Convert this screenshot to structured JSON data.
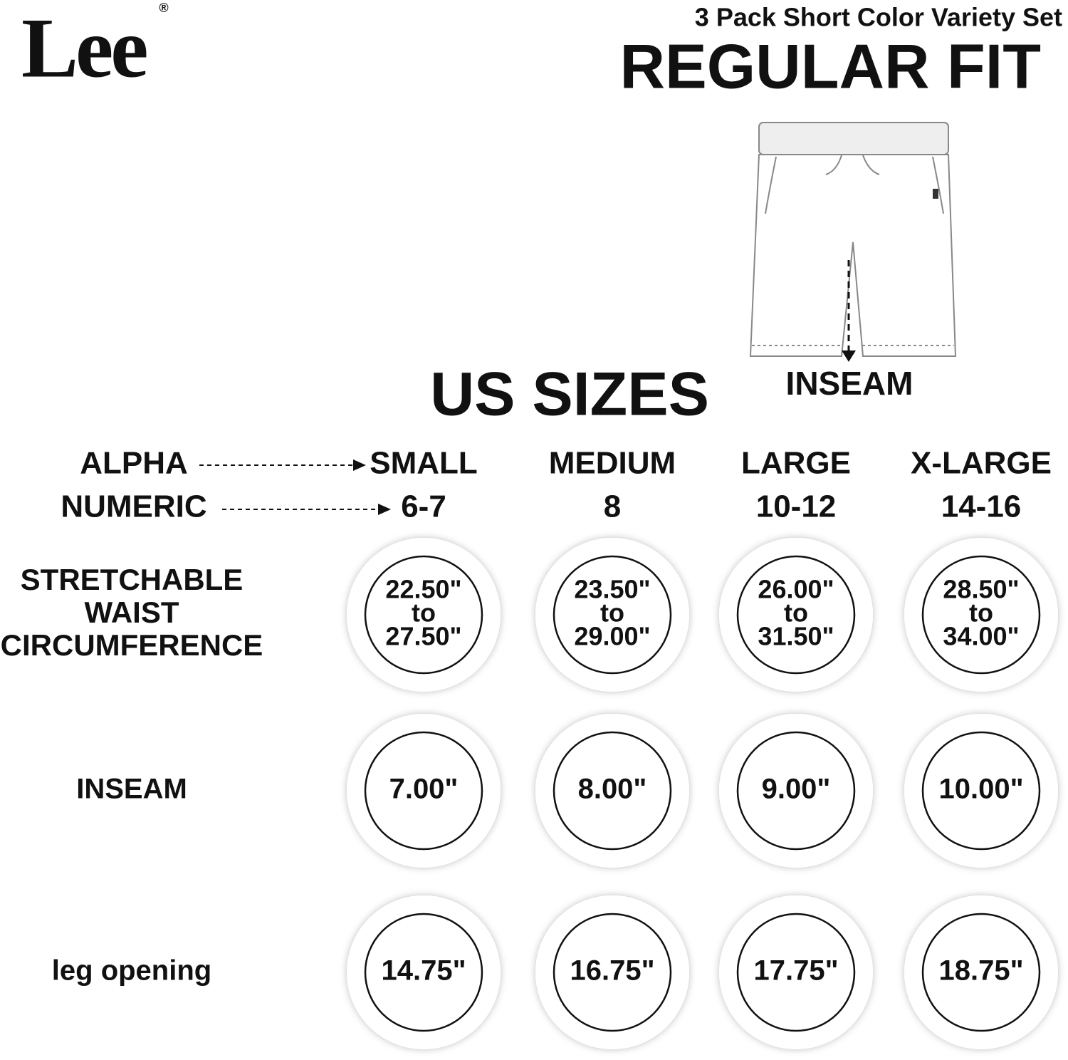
{
  "brand": {
    "name": "Lee",
    "mark": "®"
  },
  "header": {
    "subtitle": "3 Pack Short Color Variety Set",
    "title": "REGULAR FIT"
  },
  "illustration": {
    "label": "INSEAM"
  },
  "section_title": "US SIZES",
  "size_labels": {
    "alpha": "ALPHA",
    "numeric": "NUMERIC"
  },
  "columns": [
    {
      "alpha": "SMALL",
      "numeric": "6-7"
    },
    {
      "alpha": "MEDIUM",
      "numeric": "8"
    },
    {
      "alpha": "LARGE",
      "numeric": "10-12"
    },
    {
      "alpha": "X-LARGE",
      "numeric": "14-16"
    }
  ],
  "rows": [
    {
      "label": [
        "STRETCHABLE",
        "WAIST",
        "CIRCUMFERENCE"
      ],
      "cells": [
        [
          "22.50\"",
          "to",
          "27.50\""
        ],
        [
          "23.50\"",
          "to",
          "29.00\""
        ],
        [
          "26.00\"",
          "to",
          "31.50\""
        ],
        [
          "28.50\"",
          "to",
          "34.00\""
        ]
      ]
    },
    {
      "label": [
        "INSEAM"
      ],
      "cells": [
        [
          "7.00\""
        ],
        [
          "8.00\""
        ],
        [
          "9.00\""
        ],
        [
          "10.00\""
        ]
      ]
    },
    {
      "label": [
        "leg opening"
      ],
      "cells": [
        [
          "14.75\""
        ],
        [
          "16.75\""
        ],
        [
          "17.75\""
        ],
        [
          "18.75\""
        ]
      ]
    }
  ]
}
